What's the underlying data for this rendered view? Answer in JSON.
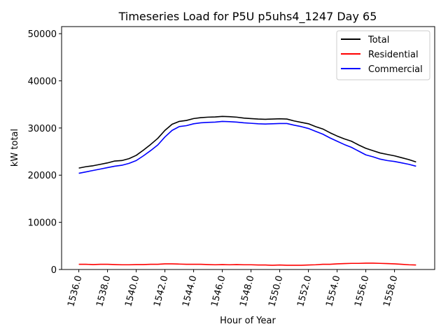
{
  "chart_data": {
    "type": "line",
    "title": "Timeseries Load for P5U p5uhs4_1247  Day 65",
    "xlabel": "Hour of Year",
    "ylabel": "kW total",
    "xlim": [
      1534.8,
      1560.8
    ],
    "ylim": [
      0,
      51500
    ],
    "xticks": [
      1536,
      1538,
      1540,
      1542,
      1544,
      1546,
      1548,
      1550,
      1552,
      1554,
      1556,
      1558
    ],
    "xtick_labels": [
      "1536.0",
      "1538.0",
      "1540.0",
      "1542.0",
      "1544.0",
      "1546.0",
      "1548.0",
      "1550.0",
      "1552.0",
      "1554.0",
      "1556.0",
      "1558.0"
    ],
    "yticks": [
      0,
      10000,
      20000,
      30000,
      40000,
      50000
    ],
    "ytick_labels": [
      "0",
      "10000",
      "20000",
      "30000",
      "40000",
      "50000"
    ],
    "legend_position": "top-right",
    "x": [
      1536,
      1536.5,
      1537,
      1537.5,
      1538,
      1538.5,
      1539,
      1539.5,
      1540,
      1540.5,
      1541,
      1541.5,
      1542,
      1542.5,
      1543,
      1543.5,
      1544,
      1544.5,
      1545,
      1545.5,
      1546,
      1546.5,
      1547,
      1547.5,
      1548,
      1548.5,
      1549,
      1549.5,
      1550,
      1550.5,
      1551,
      1551.5,
      1552,
      1552.5,
      1553,
      1553.5,
      1554,
      1554.5,
      1555,
      1555.5,
      1556,
      1556.5,
      1557,
      1557.5,
      1558,
      1558.5,
      1559,
      1559.5
    ],
    "series": [
      {
        "name": "Total",
        "color": "#000000",
        "values": [
          21500,
          21800,
          22000,
          22300,
          22600,
          23000,
          23100,
          23500,
          24200,
          25300,
          26500,
          27800,
          29500,
          30800,
          31400,
          31600,
          32000,
          32200,
          32300,
          32350,
          32450,
          32400,
          32300,
          32100,
          32000,
          31900,
          31850,
          31900,
          31950,
          31900,
          31500,
          31200,
          30900,
          30300,
          29800,
          29000,
          28300,
          27700,
          27200,
          26400,
          25700,
          25200,
          24700,
          24400,
          24100,
          23700,
          23300,
          22800
        ]
      },
      {
        "name": "Residential",
        "color": "#ff0000",
        "values": [
          1100,
          1100,
          1050,
          1100,
          1100,
          1050,
          1000,
          1000,
          1050,
          1050,
          1100,
          1100,
          1200,
          1200,
          1150,
          1100,
          1100,
          1100,
          1050,
          1000,
          1050,
          1000,
          1050,
          1000,
          1000,
          950,
          950,
          900,
          950,
          900,
          900,
          900,
          950,
          1000,
          1100,
          1100,
          1200,
          1250,
          1300,
          1300,
          1350,
          1350,
          1300,
          1250,
          1200,
          1100,
          1000,
          950
        ]
      },
      {
        "name": "Commercial",
        "color": "#0000ff",
        "values": [
          20400,
          20700,
          21000,
          21300,
          21600,
          21900,
          22100,
          22500,
          23100,
          24100,
          25200,
          26400,
          28100,
          29500,
          30300,
          30500,
          30900,
          31100,
          31200,
          31250,
          31400,
          31350,
          31250,
          31100,
          31000,
          30900,
          30850,
          30900,
          30950,
          30950,
          30600,
          30300,
          29900,
          29300,
          28700,
          27900,
          27200,
          26500,
          25900,
          25100,
          24300,
          23900,
          23400,
          23100,
          22900,
          22600,
          22300,
          21900
        ]
      }
    ]
  }
}
